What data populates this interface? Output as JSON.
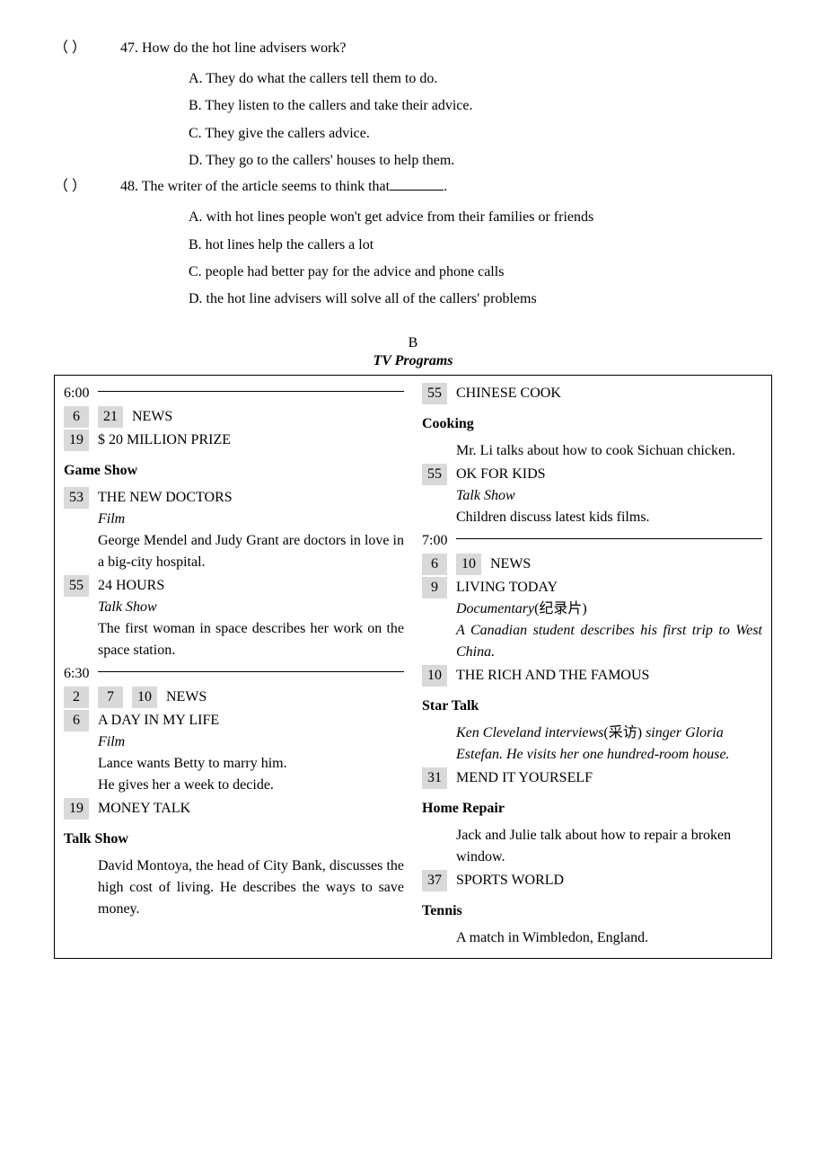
{
  "q47": {
    "prefix": "（     ）",
    "num": "47. ",
    "text": "How do the hot line advisers work?",
    "A": "A. They do what the callers tell them to do.",
    "B": "B. They listen to the callers and take their advice.",
    "C": "C. They give the callers advice.",
    "D": "D. They go to the callers' houses to help them."
  },
  "q48": {
    "prefix": "（     ）",
    "num": "48. ",
    "text": "The writer of the article seems to think that",
    "suffix": ".",
    "A": "A. with hot lines people won't get advice from their families or friends",
    "B": "B. hot lines help the callers a lot",
    "C": "C. people had better pay for the advice and phone calls",
    "D": "D. the hot line advisers will solve all of the callers' problems"
  },
  "section": {
    "letter": "B",
    "title": "TV Programs"
  },
  "tv": {
    "t600": "6:00",
    "t630": "6:30",
    "t700": "7:00",
    "left": {
      "news1_ch1": "6",
      "news1_ch2": "21",
      "news1": "NEWS",
      "prize_ch": "19",
      "prize": "$ 20 MILLION PRIZE",
      "cat_gameshow": "Game Show",
      "doctors_ch": "53",
      "doctors": "THE NEW DOCTORS",
      "doctors_type": "Film",
      "doctors_desc": "George Mendel and Judy Grant are doctors in love in a big-city hospital.",
      "hours_ch": "55",
      "hours": "24 HOURS",
      "hours_type": "Talk Show",
      "hours_desc": "The first woman in space describes her work on the space station.",
      "news2_ch1": "2",
      "news2_ch2": "7",
      "news2_ch3": "10",
      "news2": "NEWS",
      "daylife_ch": "6",
      "daylife": "A DAY IN MY LIFE",
      "daylife_type": "Film",
      "daylife_desc1": "Lance wants Betty to marry him.",
      "daylife_desc2": "He gives her a week to decide.",
      "money_ch": "19",
      "money": "MONEY TALK",
      "cat_talkshow": "Talk Show",
      "money_desc": "David Montoya, the head of City Bank, discusses the high cost of living. He describes the ways to save money."
    },
    "right": {
      "cook_ch": "55",
      "cook": "CHINESE COOK",
      "cat_cooking": "Cooking",
      "cook_desc": "Mr. Li talks about how to cook Sichuan chicken.",
      "kids_ch": "55",
      "kids": "OK FOR KIDS",
      "kids_type": "Talk Show",
      "kids_desc": "Children discuss latest kids films.",
      "news3_ch1": "6",
      "news3_ch2": "10",
      "news3": "NEWS",
      "living_ch": "9",
      "living": "LIVING TODAY",
      "living_type": "Documentary",
      "living_cn": "(纪录片)",
      "living_desc": "A Canadian student describes his first trip to West China.",
      "rich_ch": "10",
      "rich": "THE RICH AND THE FAMOUS",
      "cat_startalk": "Star Talk",
      "star_desc1": "Ken Cleveland interviews",
      "star_cn": "(采访)",
      "star_desc2": "singer Gloria Estefan. He visits her one hundred-room house.",
      "mend_ch": "31",
      "mend": "MEND IT YOURSELF",
      "cat_homerepair": "Home Repair",
      "mend_desc": "Jack and Julie talk about how to repair a broken window.",
      "sports_ch": "37",
      "sports": "SPORTS WORLD",
      "cat_tennis": "Tennis",
      "tennis_desc": "A match in Wimbledon, England."
    }
  }
}
